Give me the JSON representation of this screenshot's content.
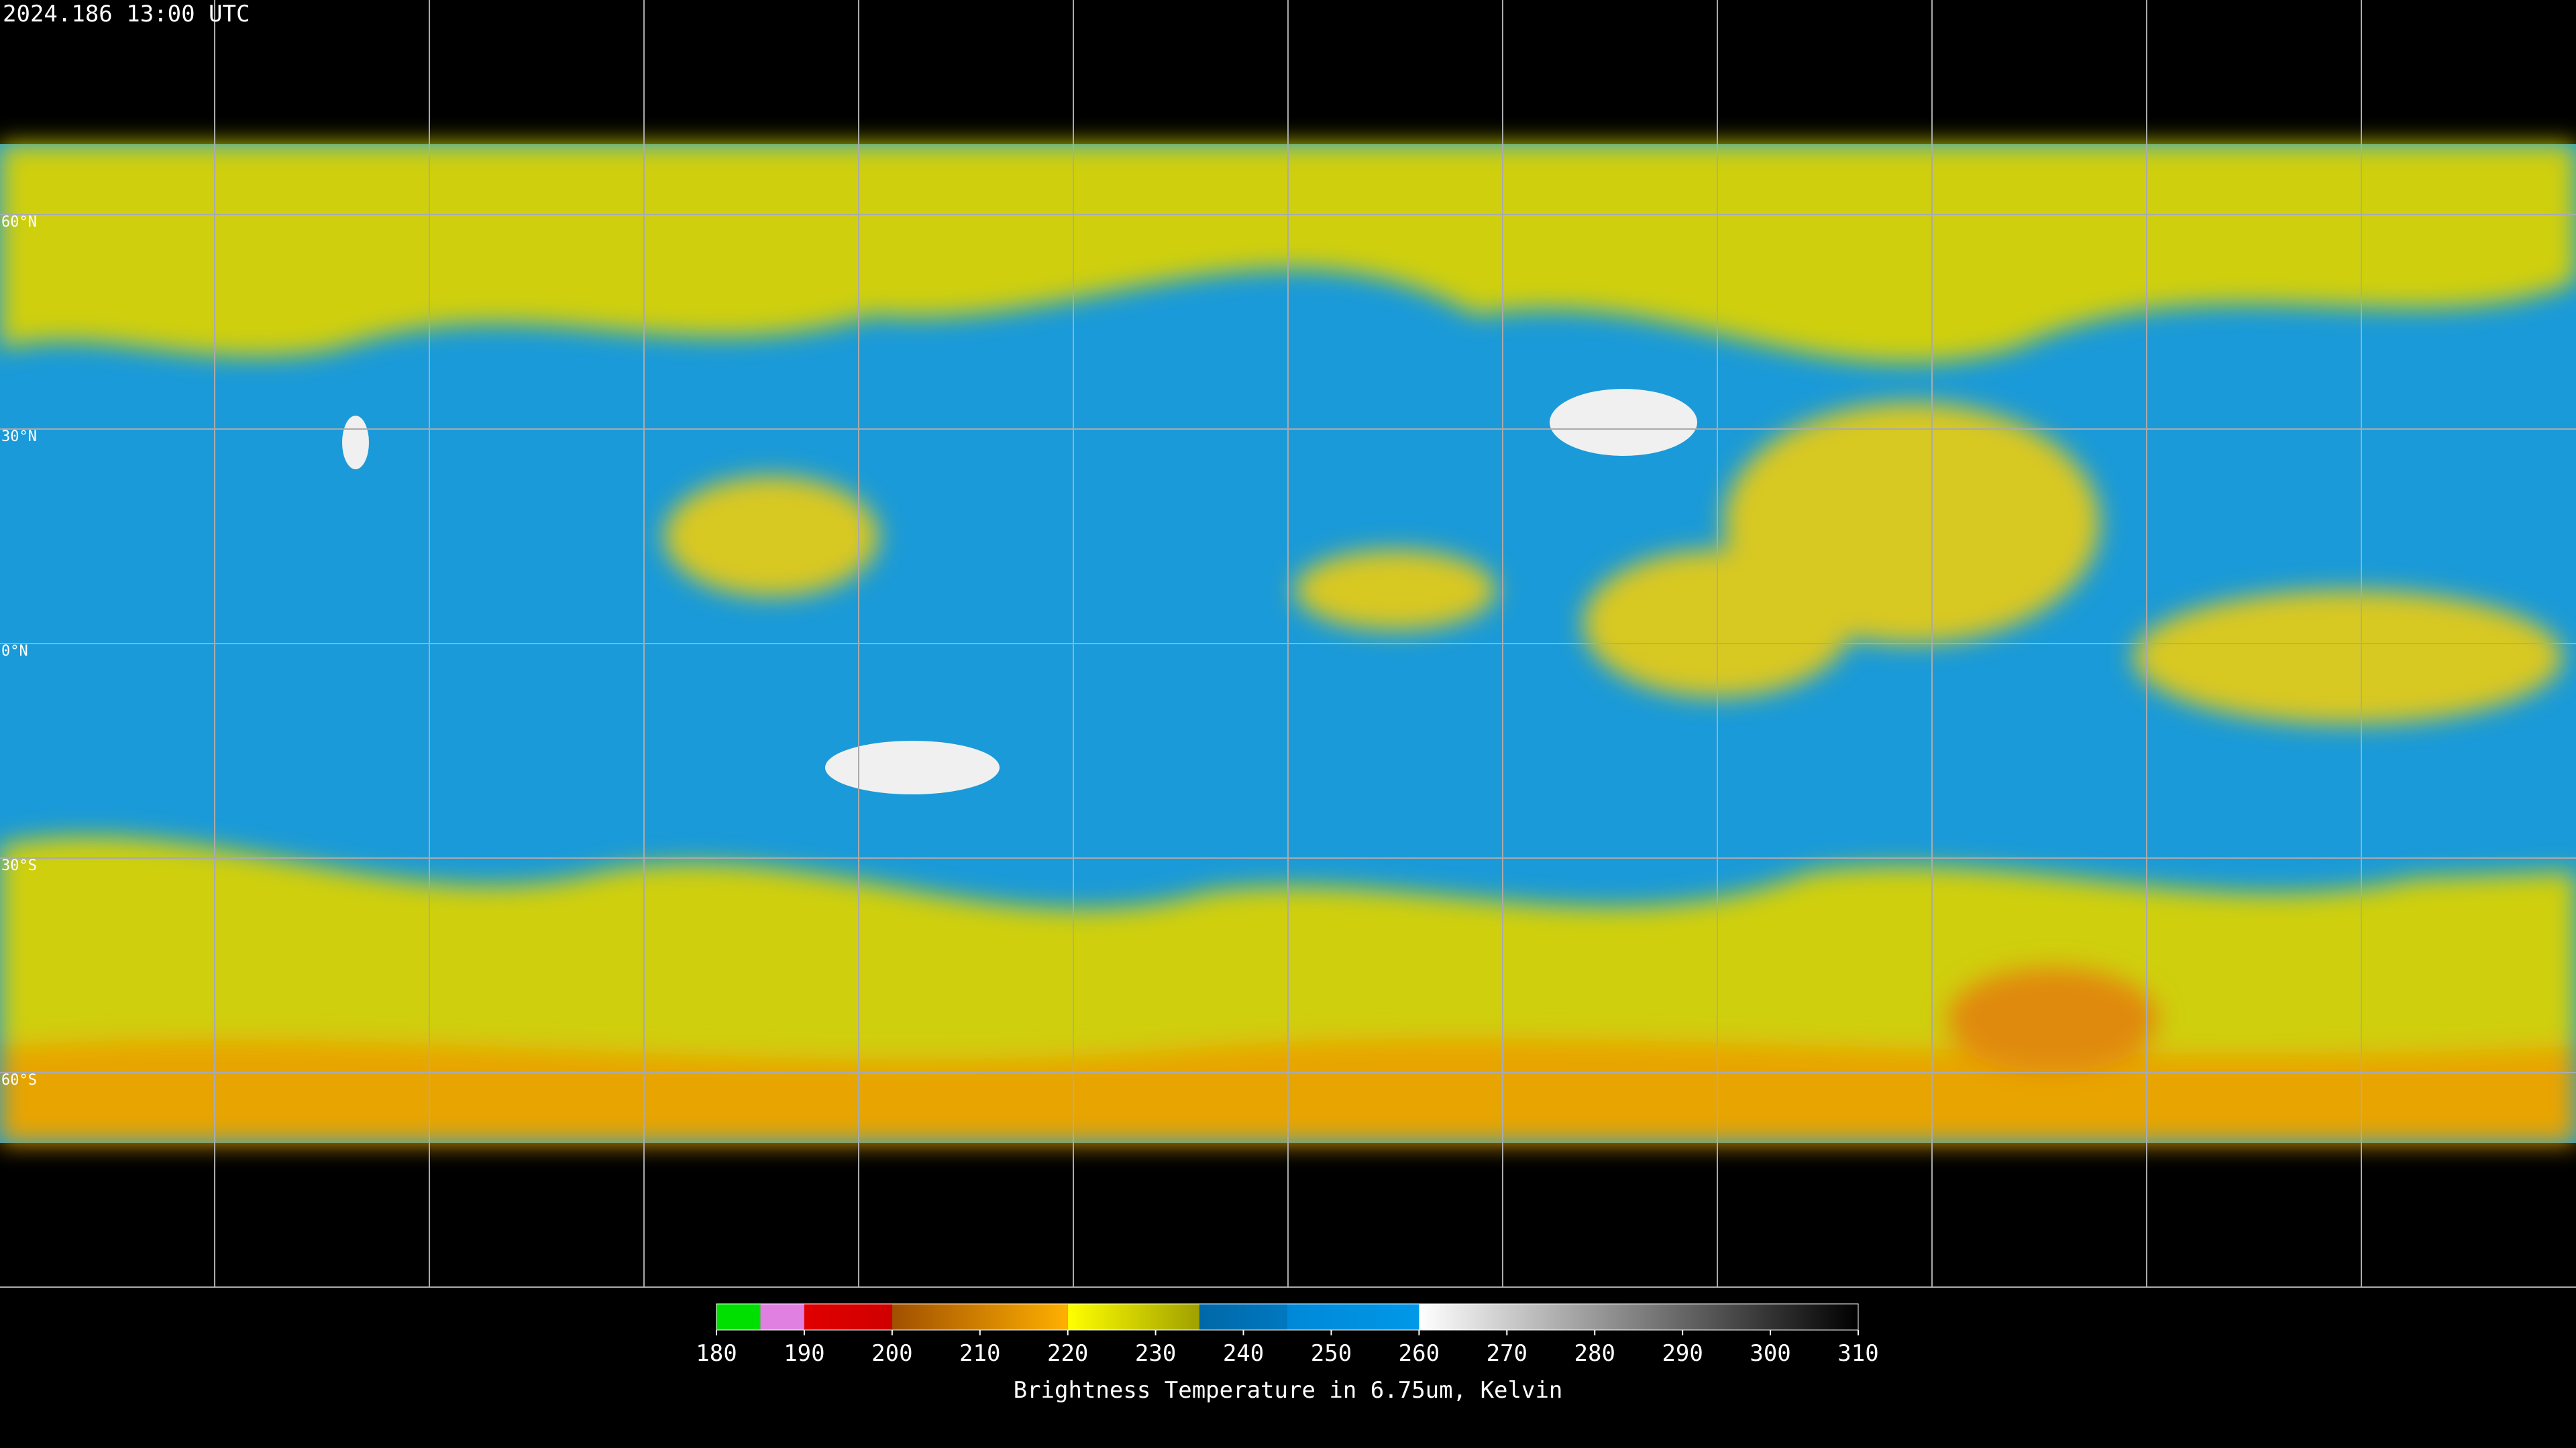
{
  "timestamp": "2024.186 13:00 UTC",
  "lat_labels": [
    "60°N",
    "30°N",
    "0°N",
    "30°S",
    "60°S"
  ],
  "colorbar": {
    "range": [
      180,
      310
    ],
    "ticks": [
      180,
      190,
      200,
      210,
      220,
      230,
      240,
      250,
      260,
      270,
      280,
      290,
      300,
      310
    ],
    "segments": [
      {
        "from": 180,
        "to": 185,
        "colors": [
          "#00e000",
          "#00e000"
        ]
      },
      {
        "from": 185,
        "to": 190,
        "colors": [
          "#e080e0",
          "#e080e0"
        ]
      },
      {
        "from": 190,
        "to": 200,
        "colors": [
          "#e00000",
          "#d00000"
        ]
      },
      {
        "from": 200,
        "to": 220,
        "colors": [
          "#a05000",
          "#ffb000"
        ]
      },
      {
        "from": 220,
        "to": 235,
        "colors": [
          "#ffff00",
          "#a0a000"
        ]
      },
      {
        "from": 235,
        "to": 245,
        "colors": [
          "#0068a8",
          "#0078c0"
        ]
      },
      {
        "from": 245,
        "to": 260,
        "colors": [
          "#0088d8",
          "#0098e8"
        ]
      },
      {
        "from": 260,
        "to": 310,
        "colors": [
          "#ffffff",
          "#000000"
        ]
      }
    ],
    "label": "Brightness Temperature in 6.75um, Kelvin"
  }
}
